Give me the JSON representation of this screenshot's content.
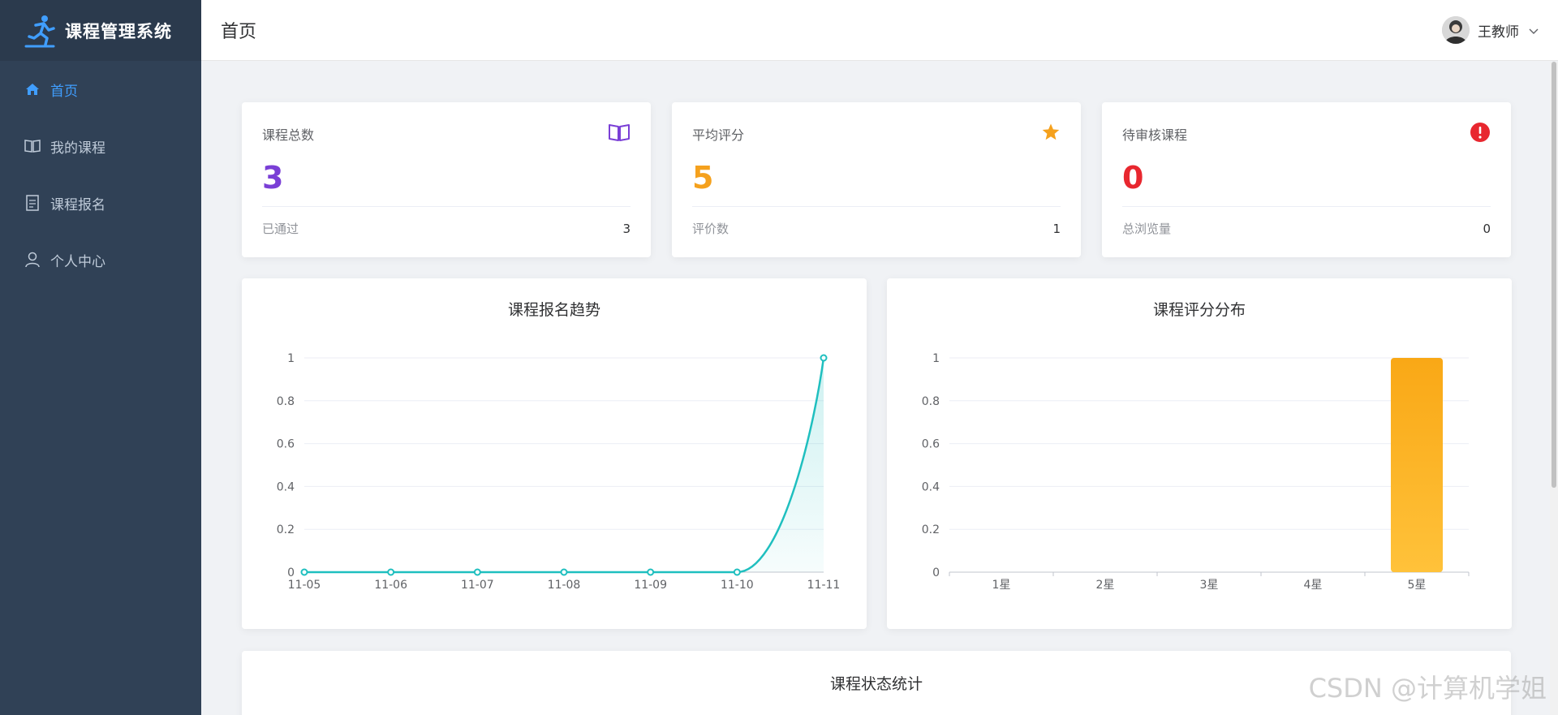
{
  "app": {
    "title": "课程管理系统"
  },
  "sidebar": {
    "items": [
      {
        "label": "首页",
        "icon": "home-icon",
        "active": true
      },
      {
        "label": "我的课程",
        "icon": "book-icon",
        "active": false
      },
      {
        "label": "课程报名",
        "icon": "document-icon",
        "active": false
      },
      {
        "label": "个人中心",
        "icon": "user-icon",
        "active": false
      }
    ]
  },
  "header": {
    "breadcrumb": "首页",
    "username": "王教师"
  },
  "stats": [
    {
      "label": "课程总数",
      "value": "3",
      "sub_label": "已通过",
      "sub_value": "3",
      "icon": "book-open-icon",
      "color": "#7a3fd6"
    },
    {
      "label": "平均评分",
      "value": "5",
      "sub_label": "评价数",
      "sub_value": "1",
      "icon": "star-icon",
      "color": "#f5a11d"
    },
    {
      "label": "待审核课程",
      "value": "0",
      "sub_label": "总浏览量",
      "sub_value": "0",
      "icon": "alert-icon",
      "color": "#e8272f"
    }
  ],
  "status_card": {
    "title": "课程状态统计"
  },
  "watermark": "CSDN @计算机学姐",
  "chart_data": [
    {
      "type": "line",
      "title": "课程报名趋势",
      "x": [
        "11-05",
        "11-06",
        "11-07",
        "11-08",
        "11-09",
        "11-10",
        "11-11"
      ],
      "values": [
        0,
        0,
        0,
        0,
        0,
        0,
        1
      ],
      "y_ticks": [
        "0",
        "0.2",
        "0.4",
        "0.6",
        "0.8",
        "1"
      ],
      "ylim": [
        0,
        1
      ],
      "color": "#1fbfbf",
      "grid": true
    },
    {
      "type": "bar",
      "title": "课程评分分布",
      "categories": [
        "1星",
        "2星",
        "3星",
        "4星",
        "5星"
      ],
      "values": [
        0,
        0,
        0,
        0,
        1
      ],
      "y_ticks": [
        "0",
        "0.2",
        "0.4",
        "0.6",
        "0.8",
        "1"
      ],
      "ylim": [
        0,
        1
      ],
      "color": "#fbb024",
      "grid": true
    }
  ]
}
